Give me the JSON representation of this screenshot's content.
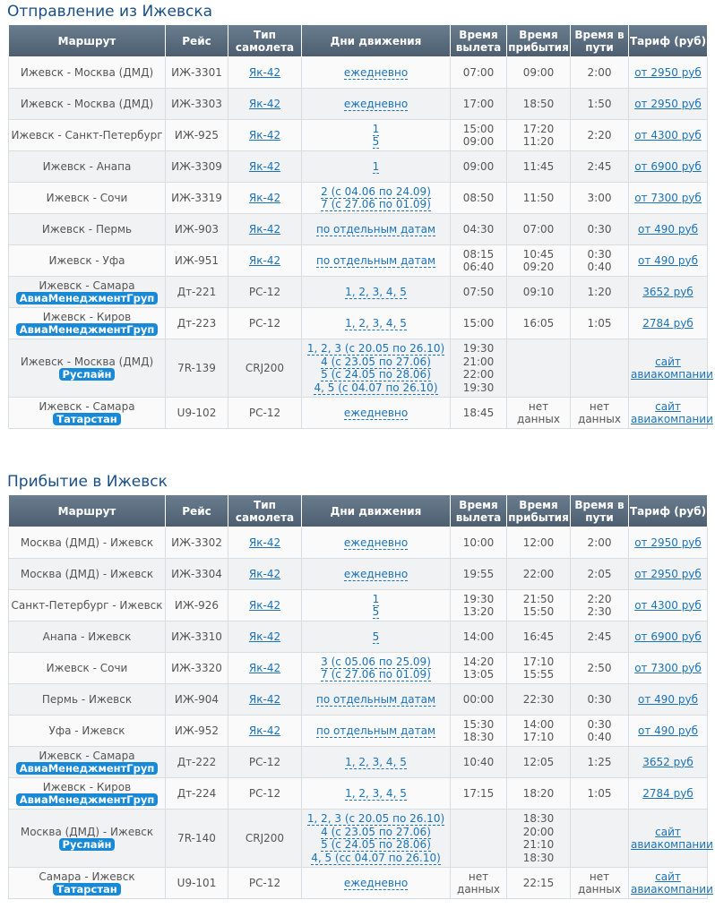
{
  "headers": [
    "Маршрут",
    "Рейс",
    "Тип самолета",
    "Дни движения",
    "Время вылета",
    "Время прибытия",
    "Время в пути",
    "Тариф (руб)"
  ],
  "departure": {
    "title": "Отправление из Ижевска",
    "rows": [
      {
        "route": "Ижевск - Москва (ДМД)",
        "airline": "",
        "flight": "ИЖ-3301",
        "plane": "Як-42",
        "plane_link": true,
        "days": [
          "ежедневно"
        ],
        "dep": [
          "07:00"
        ],
        "arr": [
          "09:00"
        ],
        "dur": [
          "2:00"
        ],
        "tariff": [
          "от 2950 руб"
        ]
      },
      {
        "route": "Ижевск - Москва (ДМД)",
        "airline": "",
        "flight": "ИЖ-3303",
        "plane": "Як-42",
        "plane_link": true,
        "days": [
          "ежедневно"
        ],
        "dep": [
          "17:00"
        ],
        "arr": [
          "18:50"
        ],
        "dur": [
          "1:50"
        ],
        "tariff": [
          "от 2950 руб"
        ]
      },
      {
        "route": "Ижевск - Санкт-Петербург",
        "airline": "",
        "flight": "ИЖ-925",
        "plane": "Як-42",
        "plane_link": true,
        "days": [
          "1",
          "5"
        ],
        "dep": [
          "15:00",
          "09:00"
        ],
        "arr": [
          "17:20",
          "11:20"
        ],
        "dur": [
          "2:20"
        ],
        "tariff": [
          "от 4300 руб"
        ]
      },
      {
        "route": "Ижевск - Анапа",
        "airline": "",
        "flight": "ИЖ-3309",
        "plane": "Як-42",
        "plane_link": true,
        "days": [
          "1"
        ],
        "dep": [
          "09:00"
        ],
        "arr": [
          "11:45"
        ],
        "dur": [
          "2:45"
        ],
        "tariff": [
          "от 6900 руб"
        ]
      },
      {
        "route": "Ижевск - Сочи",
        "airline": "",
        "flight": "ИЖ-3319",
        "plane": "Як-42",
        "plane_link": true,
        "days": [
          "2 (с 04.06 по 24.09)",
          "7 (с 27.06 по 01.09)"
        ],
        "dep": [
          "08:50"
        ],
        "arr": [
          "11:50"
        ],
        "dur": [
          "3:00"
        ],
        "tariff": [
          "от 7300 руб"
        ]
      },
      {
        "route": "Ижевск - Пермь",
        "airline": "",
        "flight": "ИЖ-903",
        "plane": "Як-42",
        "plane_link": true,
        "days": [
          "по отдельным датам"
        ],
        "dep": [
          "04:30"
        ],
        "arr": [
          "07:00"
        ],
        "dur": [
          "0:30"
        ],
        "tariff": [
          "от 490 руб"
        ]
      },
      {
        "route": "Ижевск - Уфа",
        "airline": "",
        "flight": "ИЖ-951",
        "plane": "Як-42",
        "plane_link": true,
        "days": [
          "по отдельным датам"
        ],
        "dep": [
          "08:15",
          "06:40"
        ],
        "arr": [
          "10:45",
          "09:20"
        ],
        "dur": [
          "0:30",
          "0:40"
        ],
        "tariff": [
          "от 490 руб"
        ]
      },
      {
        "route": "Ижевск - Самара",
        "airline": "АвиаМенеджментГруп",
        "flight": "Дт-221",
        "plane": "РС-12",
        "plane_link": false,
        "days": [
          "1, 2, 3, 4, 5"
        ],
        "dep": [
          "07:50"
        ],
        "arr": [
          "09:10"
        ],
        "dur": [
          "1:20"
        ],
        "tariff": [
          "3652 руб"
        ]
      },
      {
        "route": "Ижевск - Киров",
        "airline": "АвиаМенеджментГруп",
        "flight": "Дт-223",
        "plane": "РС-12",
        "plane_link": false,
        "days": [
          "1, 2, 3, 4, 5"
        ],
        "dep": [
          "15:00"
        ],
        "arr": [
          "16:05"
        ],
        "dur": [
          "1:05"
        ],
        "tariff": [
          "2784 руб"
        ]
      },
      {
        "route": "Ижевск - Москва (ДМД)",
        "airline": "Руслайн",
        "flight": "7R-139",
        "plane": "CRJ200",
        "plane_link": false,
        "days": [
          "1, 2, 3 (с 20.05 по 26.10)",
          "4 (с 23.05 по 27.06)",
          "5 (с 24.05 по 28.06)",
          "4, 5 (с 04.07 по 26.10)"
        ],
        "dep": [
          "19:30",
          "21:00",
          "22:00",
          "19:30"
        ],
        "arr": [],
        "dur": [],
        "tariff": [
          "сайт",
          "авиакомпании"
        ]
      },
      {
        "route": "Ижевск - Самара",
        "airline": "Татарстан",
        "flight": "U9-102",
        "plane": "РС-12",
        "plane_link": false,
        "days": [
          "ежедневно"
        ],
        "dep": [
          "18:45"
        ],
        "arr": [
          "нет",
          "данных"
        ],
        "dur": [
          "нет",
          "данных"
        ],
        "tariff": [
          "сайт",
          "авиакомпании"
        ]
      }
    ]
  },
  "arrival": {
    "title": "Прибытие в Ижевск",
    "rows": [
      {
        "route": "Москва (ДМД) - Ижевск",
        "airline": "",
        "flight": "ИЖ-3302",
        "plane": "Як-42",
        "plane_link": true,
        "days": [
          "ежедневно"
        ],
        "dep": [
          "10:00"
        ],
        "arr": [
          "12:00"
        ],
        "dur": [
          "2:00"
        ],
        "tariff": [
          "от 2950 руб"
        ]
      },
      {
        "route": "Москва (ДМД) - Ижевск",
        "airline": "",
        "flight": "ИЖ-3304",
        "plane": "Як-42",
        "plane_link": true,
        "days": [
          "ежедневно"
        ],
        "dep": [
          "19:55"
        ],
        "arr": [
          "22:00"
        ],
        "dur": [
          "2:05"
        ],
        "tariff": [
          "от 2950 руб"
        ]
      },
      {
        "route": "Санкт-Петербург - Ижевск",
        "airline": "",
        "flight": "ИЖ-926",
        "plane": "Як-42",
        "plane_link": true,
        "days": [
          "1",
          "5"
        ],
        "dep": [
          "19:30",
          "13:20"
        ],
        "arr": [
          "21:50",
          "15:50"
        ],
        "dur": [
          "2:20",
          "2:30"
        ],
        "tariff": [
          "от 4300 руб"
        ]
      },
      {
        "route": "Анапа - Ижевск",
        "airline": "",
        "flight": "ИЖ-3310",
        "plane": "Як-42",
        "plane_link": true,
        "days": [
          "5"
        ],
        "dep": [
          "14:00"
        ],
        "arr": [
          "16:45"
        ],
        "dur": [
          "2:45"
        ],
        "tariff": [
          "от 6900 руб"
        ]
      },
      {
        "route": "Ижевск - Сочи",
        "airline": "",
        "flight": "ИЖ-3320",
        "plane": "Як-42",
        "plane_link": true,
        "days": [
          "3 (с 05.06 по 25.09)",
          "7 (с 27.06 по 01.09)"
        ],
        "dep": [
          "14:20",
          "13:05"
        ],
        "arr": [
          "17:10",
          "15:55"
        ],
        "dur": [
          "2:50"
        ],
        "tariff": [
          "от 7300 руб"
        ]
      },
      {
        "route": "Пермь - Ижевск",
        "airline": "",
        "flight": "ИЖ-904",
        "plane": "Як-42",
        "plane_link": true,
        "days": [
          "по отдельным датам"
        ],
        "dep": [
          "00:00"
        ],
        "arr": [
          "22:30"
        ],
        "dur": [
          "0:30"
        ],
        "tariff": [
          "от 490 руб"
        ]
      },
      {
        "route": "Уфа - Ижевск",
        "airline": "",
        "flight": "ИЖ-952",
        "plane": "Як-42",
        "plane_link": true,
        "days": [
          "по отдельным датам"
        ],
        "dep": [
          "15:30",
          "18:30"
        ],
        "arr": [
          "14:00",
          "17:10"
        ],
        "dur": [
          "0:30",
          "0:40"
        ],
        "tariff": [
          "от 490 руб"
        ]
      },
      {
        "route": "Ижевск - Самара",
        "airline": "АвиаМенеджментГруп",
        "flight": "Дт-222",
        "plane": "РС-12",
        "plane_link": false,
        "days": [
          "1, 2, 3, 4, 5"
        ],
        "dep": [
          "10:40"
        ],
        "arr": [
          "12:05"
        ],
        "dur": [
          "1:25"
        ],
        "tariff": [
          "3652 руб"
        ]
      },
      {
        "route": "Ижевск - Киров",
        "airline": "АвиаМенеджментГруп",
        "flight": "Дт-224",
        "plane": "РС-12",
        "plane_link": false,
        "days": [
          "1, 2, 3, 4, 5"
        ],
        "dep": [
          "17:15"
        ],
        "arr": [
          "18:20"
        ],
        "dur": [
          "1:05"
        ],
        "tariff": [
          "2784 руб"
        ]
      },
      {
        "route": "Москва (ДМД) - Ижевск",
        "airline": "Руслайн",
        "flight": "7R-140",
        "plane": "CRJ200",
        "plane_link": false,
        "days": [
          "1, 2, 3 (с 20.05 по 26.10)",
          "4 (с 23.05 по 27.06)",
          "5 (с 24.05 по 28.06)",
          "4, 5 (сс 04.07 по 26.10)"
        ],
        "dep": [],
        "arr": [
          "18:30",
          "20:00",
          "21:10",
          "18:30"
        ],
        "dur": [],
        "tariff": [
          "сайт",
          "авиакомпании"
        ]
      },
      {
        "route": "Самара - Ижевск",
        "airline": "Татарстан",
        "flight": "U9-101",
        "plane": "РС-12",
        "plane_link": false,
        "days": [
          "ежедневно"
        ],
        "dep": [
          "нет",
          "данных"
        ],
        "arr": [
          "22:15"
        ],
        "dur": [
          "нет",
          "данных"
        ],
        "tariff": [
          "сайт",
          "авиакомпании"
        ]
      }
    ]
  }
}
